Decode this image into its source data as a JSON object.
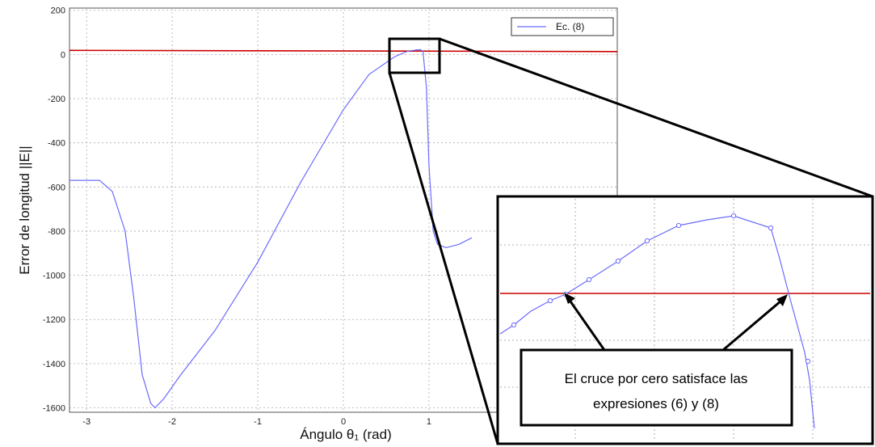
{
  "chart_data": {
    "type": "line",
    "xlabel": "Ángulo θ₁ (rad)",
    "ylabel": "Error de longitud ||E||",
    "xlim": [
      -3.2,
      3.2
    ],
    "ylim": [
      -1620,
      210
    ],
    "x_ticks": [
      -3,
      -2,
      -1,
      0,
      1
    ],
    "x_tick_labels": [
      "-3",
      "-2",
      "-1",
      "0",
      "1"
    ],
    "y_ticks": [
      200,
      0,
      -200,
      -400,
      -600,
      -800,
      -1000,
      -1200,
      -1400,
      -1600
    ],
    "y_tick_labels": [
      "200",
      "0",
      "-200",
      "-400",
      "-600",
      "-800",
      "-1000",
      "-1200",
      "-1400",
      "-1600"
    ],
    "grid": true,
    "legend": {
      "position": "top-right",
      "entries": [
        "Ec. (8)"
      ]
    },
    "reference_line": {
      "y": 15,
      "color": "#cc0000"
    },
    "series": [
      {
        "name": "Ec. (8)",
        "color": "#6b6bff",
        "x": [
          -3.2,
          -2.85,
          -2.7,
          -2.55,
          -2.45,
          -2.35,
          -2.25,
          -2.2,
          -2.1,
          -1.9,
          -1.5,
          -1.0,
          -0.5,
          0.0,
          0.3,
          0.6,
          0.75,
          0.85,
          0.9,
          0.93,
          0.97,
          1.0,
          1.05,
          1.1,
          1.2,
          1.35,
          1.5
        ],
        "values": [
          -570,
          -570,
          -620,
          -800,
          -1100,
          -1450,
          -1580,
          -1600,
          -1560,
          -1450,
          -1250,
          -940,
          -580,
          -250,
          -90,
          -10,
          15,
          20,
          22,
          15,
          -150,
          -500,
          -800,
          -860,
          -875,
          -860,
          -830
        ]
      }
    ]
  },
  "zoom": {
    "annotation_line1": "El cruce por cero satisface las",
    "annotation_line2": "expresiones (6) y (8)"
  }
}
